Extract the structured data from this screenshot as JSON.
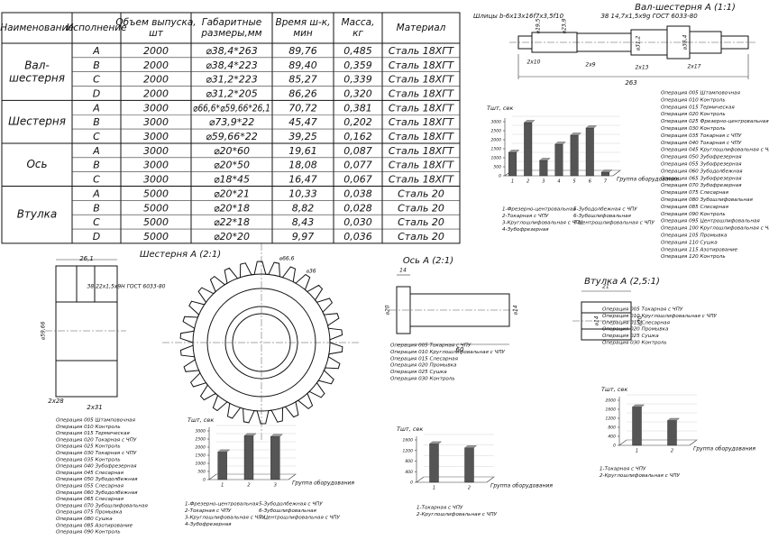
{
  "table": {
    "header": [
      "Наименование",
      "Исполнение",
      "Объем выпуска, шт",
      "Габаритные размеры,мм",
      "Время ш-к, мин",
      "Масса, кг",
      "Материал"
    ],
    "groups": [
      {
        "name": "Вал-шестерня",
        "rows": [
          [
            "A",
            "2000",
            "⌀38,4*263",
            "89,76",
            "0,485",
            "Сталь 18ХГТ"
          ],
          [
            "B",
            "2000",
            "⌀38,4*223",
            "89,40",
            "0,359",
            "Сталь 18ХГТ"
          ],
          [
            "C",
            "2000",
            "⌀31,2*223",
            "85,27",
            "0,339",
            "Сталь 18ХГТ"
          ],
          [
            "D",
            "2000",
            "⌀31,2*205",
            "86,26",
            "0,320",
            "Сталь 18ХГТ"
          ]
        ]
      },
      {
        "name": "Шестерня",
        "rows": [
          [
            "A",
            "3000",
            "⌀66,6*⌀59,66*26,1",
            "70,72",
            "0,381",
            "Сталь 18ХГТ"
          ],
          [
            "B",
            "3000",
            "⌀73,9*22",
            "45,47",
            "0,202",
            "Сталь 18ХГТ"
          ],
          [
            "C",
            "3000",
            "⌀59,66*22",
            "39,25",
            "0,162",
            "Сталь 18ХГТ"
          ]
        ]
      },
      {
        "name": "Ось",
        "rows": [
          [
            "A",
            "3000",
            "⌀20*60",
            "19,61",
            "0,087",
            "Сталь 18ХГТ"
          ],
          [
            "B",
            "3000",
            "⌀20*50",
            "18,08",
            "0,077",
            "Сталь 18ХГТ"
          ],
          [
            "C",
            "3000",
            "⌀18*45",
            "16,47",
            "0,067",
            "Сталь 18ХГТ"
          ]
        ]
      },
      {
        "name": "Втулка",
        "rows": [
          [
            "A",
            "5000",
            "⌀20*21",
            "10,33",
            "0,038",
            "Сталь 20"
          ],
          [
            "B",
            "5000",
            "⌀20*18",
            "8,82",
            "0,028",
            "Сталь 20"
          ],
          [
            "C",
            "5000",
            "⌀22*18",
            "8,43",
            "0,030",
            "Сталь 20"
          ],
          [
            "D",
            "5000",
            "⌀20*20",
            "9,97",
            "0,036",
            "Сталь 20"
          ]
        ]
      }
    ]
  },
  "drawings": [
    {
      "title": "Вал-шестерня А (1:1)",
      "labels": [
        "Шлицы b-6x13x16f7x3,5f10",
        "З8 14,7x1,5x9g ГОСТ 6033-80",
        "⌀19,5",
        "⌀23,9",
        "⌀31,2",
        "⌀38,4",
        "2x10",
        "2x9",
        "2x13",
        "2x17",
        "263"
      ]
    },
    {
      "title": "Шестерня А (2:1)",
      "labels": [
        "26,1",
        "З8 22x1,5x9H ГОСТ 6033-80",
        "⌀59,66",
        "2x28",
        "2x31",
        "⌀66,6",
        "⌀36"
      ]
    },
    {
      "title": "Ось А (2:1)",
      "labels": [
        "14",
        "⌀20",
        "⌀14",
        "60"
      ]
    },
    {
      "title": "Втулка А (2,5:1)",
      "labels": [
        "21",
        "⌀20",
        "⌀14"
      ]
    }
  ],
  "operations": [
    [
      "Операция 005 Штамповочная",
      "Операция 010 Контроль",
      "Операция 015 Термическая",
      "Операция 020 Контроль",
      "Операция 025 Фрезерно-центровальная",
      "Операция 030 Контроль",
      "Операция 035 Токарная с ЧПУ",
      "Операция 040 Токарная с ЧПУ",
      "Операция 045 Круглошлифовальная с ЧПУ",
      "Операция 050 Зубофрезерная",
      "Операция 055 Зубофрезерная",
      "Операция 060 Зубодолбежная",
      "Операция 065 Зубофрезерная",
      "Операция 070 Зубофрезерная",
      "Операция 075 Слесарная",
      "Операция 080 Зубошлифовальная",
      "Операция 085 Слесарная",
      "Операция 090 Контроль",
      "Операция 095 Центрошлифовальная",
      "Операция 100 Круглошлифовальная с ЧПУ",
      "Операция 105 Промывка",
      "Операция 110 Сушка",
      "Операция 115 Азотирование",
      "Операция 120 Контроль"
    ],
    [
      "Операция 005 Штамповочная",
      "Операция 010 Контроль",
      "Операция 015 Термическая",
      "Операция 020 Токарная с ЧПУ",
      "Операция 025 Контроль",
      "Операция 030 Токарная с ЧПУ",
      "Операция 035 Контроль",
      "Операция 040 Зубофрезерная",
      "Операция 045 Слесарная",
      "Операция 050 Зубодолбежная",
      "Операция 055 Слесарная",
      "Операция 060 Зубодолбежная",
      "Операция 065 Слесарная",
      "Операция 070 Зубошлифовальная",
      "Операция 075 Промывка",
      "Операция 080 Сушка",
      "Операция 085 Азотирование",
      "Операция 090 Контроль"
    ],
    [
      "Операция 005 Токарная с ЧПУ",
      "Операция 010 Круглошлифовальная с ЧПУ",
      "Операция 015 Слесарная",
      "Операция 020 Промывка",
      "Операция 025 Сушка",
      "Операция 030 Контроль"
    ],
    [
      "Операция 005 Токарная с ЧПУ",
      "Операция 010 Круглошлифовальная с ЧПУ",
      "Операция 015 Слесарная",
      "Операция 020 Промывка",
      "Операция 025 Сушка",
      "Операция 030 Контроль"
    ]
  ],
  "chart_data": [
    {
      "type": "bar",
      "y_label": "Tшт, сек",
      "x_label": "Группа оборудования",
      "categories": [
        "1",
        "2",
        "3",
        "4",
        "5",
        "6",
        "7"
      ],
      "values": [
        1300,
        2950,
        850,
        1750,
        2250,
        2650,
        200
      ],
      "color": "#555555",
      "ylim": [
        0,
        3000
      ],
      "yticks": [
        0,
        500,
        1000,
        1500,
        2000,
        2500,
        3000
      ],
      "notes": [
        "1-Фрезерно-центровальная",
        "2-Токарная с ЧПУ",
        "3-Круглошлифовальная с ЧПУ",
        "4-Зубофрезерная",
        "5-Зубодолбежная с ЧПУ",
        "6-Зубошлифовальная",
        "7-Центрошлифовальная с ЧПУ"
      ]
    },
    {
      "type": "bar",
      "y_label": "Tшт, сек",
      "x_label": "Группа оборудования",
      "categories": [
        "1",
        "2",
        "3"
      ],
      "values": [
        1700,
        2700,
        2650
      ],
      "color": "#555555",
      "ylim": [
        0,
        3000
      ],
      "yticks": [
        0,
        500,
        1000,
        1500,
        2000,
        2500,
        3000
      ],
      "notes": [
        "1-Фрезерно-центровальная",
        "2-Токарная с ЧПУ",
        "3-Круглошлифовальная с ЧПУ",
        "4-Зубофрезерная",
        "5-Зубодолбежная с ЧПУ",
        "6-Зубошлифовальная",
        "7-Центрошлифовальная с ЧПУ"
      ]
    },
    {
      "type": "bar",
      "y_label": "Tшт, сек",
      "x_label": "Группа оборудования",
      "categories": [
        "1",
        "2"
      ],
      "values": [
        1450,
        1300
      ],
      "color": "#555555",
      "ylim": [
        0,
        1600
      ],
      "yticks": [
        0,
        400,
        800,
        1200,
        1600
      ],
      "notes": [
        "1-Токарная с ЧПУ",
        "2-Круглошлифовальная с ЧПУ"
      ]
    },
    {
      "type": "bar",
      "y_label": "Tшт, сек",
      "x_label": "Группа оборудования",
      "categories": [
        "1",
        "2"
      ],
      "values": [
        1700,
        1100
      ],
      "color": "#555555",
      "ylim": [
        0,
        2000
      ],
      "yticks": [
        0,
        400,
        800,
        1200,
        1600,
        2000
      ],
      "notes": [
        "1-Токарная с ЧПУ",
        "2-Круглошлифовальная с ЧПУ"
      ]
    }
  ]
}
